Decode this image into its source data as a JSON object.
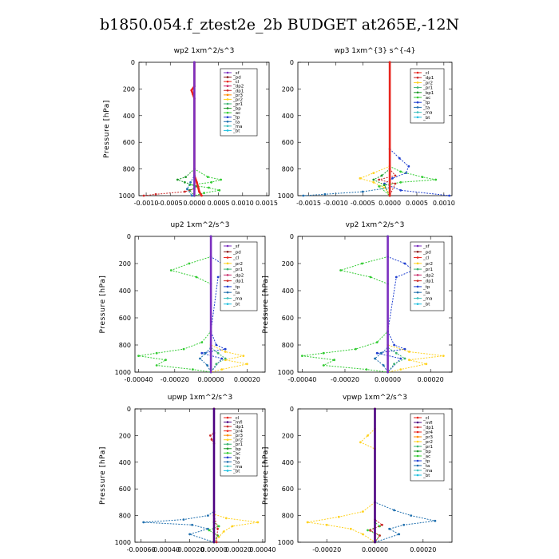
{
  "page": {
    "title": "b1850.054.f_ztest2e_2b  BUDGET at265E,-12N"
  },
  "colors": {
    "sf": "#7b2fbf",
    "pd": "#8b1a1a",
    "cl": "#e8251e",
    "dp2": "#c92a6a",
    "dp1": "#cc2a2a",
    "pr3": "#ff8c00",
    "pr2": "#ffd21f",
    "pr1": "#3cb371",
    "bp": "#1e9a2a",
    "ac": "#33cc33",
    "tp": "#2040d0",
    "ta": "#1f6fae",
    "ma": "#40c0c0",
    "bt": "#20c0e0",
    "mfl": "#4b0080",
    "pr4": "#e8251e"
  },
  "chart_data": [
    {
      "type": "line",
      "title": "wp2   1xm^2/s^3",
      "ylabel": "Pressure  [hPa]",
      "ylim": [
        1000,
        0
      ],
      "yticks": [
        "0",
        "200",
        "400",
        "600",
        "800",
        "1000"
      ],
      "xlim": [
        -0.00115,
        0.00155
      ],
      "xticks": [
        {
          "v": -0.001,
          "label": "-0.0010"
        },
        {
          "v": -0.0005,
          "label": "-0.0005"
        },
        {
          "v": 0.0,
          "label": "0.0000"
        },
        {
          "v": 0.0005,
          "label": "0.0005"
        },
        {
          "v": 0.001,
          "label": "0.0010"
        },
        {
          "v": 0.0015,
          "label": "0.0015"
        }
      ],
      "legend": [
        "_sf",
        "_pd",
        "_cl",
        "_dp2",
        "_dp1",
        "_pr3",
        "_pr2",
        "_pr1",
        "_bp",
        "_ac",
        "_tp",
        "_ta",
        "_ma",
        "_bt"
      ],
      "series": [
        {
          "name": "_ac",
          "color_key": "ac",
          "y": [
            0,
            800,
            860,
            880,
            900,
            920,
            940,
            960,
            980,
            1000
          ],
          "x": [
            0,
            0,
            0.00028,
            0.00055,
            0.00035,
            -0.0001,
            0.0003,
            0.00052,
            0.0002,
            0
          ]
        },
        {
          "name": "_bp",
          "color_key": "bp",
          "y": [
            0,
            800,
            860,
            880,
            900,
            930,
            960,
            1000
          ],
          "x": [
            0,
            0,
            -0.00018,
            -0.00035,
            -0.0002,
            5e-05,
            -0.0001,
            0
          ]
        },
        {
          "name": "_dp1",
          "color_key": "dp1",
          "y": [
            0,
            950,
            970,
            990,
            1000
          ],
          "x": [
            0,
            0,
            -0.0002,
            -0.0008,
            -0.00105
          ]
        },
        {
          "name": "_cl",
          "color_key": "cl",
          "y": [
            0,
            180,
            210,
            240,
            270,
            850,
            900,
            940,
            970,
            1000
          ],
          "x": [
            0,
            0,
            -6e-05,
            -3e-05,
            0,
            0,
            5e-05,
            8e-05,
            0.0001,
            0.00015
          ]
        },
        {
          "name": "_ta",
          "color_key": "ta",
          "y": [
            0,
            850,
            900,
            950,
            1000
          ],
          "x": [
            0,
            0,
            -8e-05,
            -0.00015,
            -5e-05
          ]
        },
        {
          "name": "_sf",
          "color_key": "sf",
          "y": [
            0,
            1000
          ],
          "x": [
            0,
            0
          ]
        }
      ]
    },
    {
      "type": "line",
      "title": "wp3   1xm^{3} s^{-4}",
      "ylabel": "",
      "ylim": [
        1000,
        0
      ],
      "yticks": [
        "0",
        "200",
        "400",
        "600",
        "800",
        "1000"
      ],
      "xlim": [
        -0.0017,
        0.00115
      ],
      "xticks": [
        {
          "v": -0.0015,
          "label": "-0.0015"
        },
        {
          "v": -0.001,
          "label": "-0.0010"
        },
        {
          "v": -0.0005,
          "label": "-0.0005"
        },
        {
          "v": 0.0,
          "label": "0.0000"
        },
        {
          "v": 0.0005,
          "label": "0.0005"
        },
        {
          "v": 0.001,
          "label": "0.0010"
        }
      ],
      "legend": [
        "_cl",
        "_dp1",
        "_pr2",
        "_pr1",
        "_bp1",
        "_ac",
        "_tp",
        "_ta",
        "_ma",
        "_bt"
      ],
      "series": [
        {
          "name": "_tp",
          "color_key": "tp",
          "y": [
            0,
            650,
            720,
            780,
            830,
            870,
            910,
            960,
            1000
          ],
          "x": [
            0,
            0,
            0.00018,
            0.00035,
            0.0003,
            5e-05,
            -0.0001,
            0.0002,
            0.0011
          ]
        },
        {
          "name": "_ac",
          "color_key": "ac",
          "y": [
            0,
            780,
            820,
            860,
            880,
            900,
            930,
            1000
          ],
          "x": [
            0,
            0,
            0.0002,
            0.0006,
            0.00085,
            0.0002,
            -0.0002,
            0
          ]
        },
        {
          "name": "_pr2",
          "color_key": "pr2",
          "y": [
            0,
            780,
            830,
            870,
            900,
            940,
            1000
          ],
          "x": [
            0,
            0,
            -0.0003,
            -0.00055,
            -0.0003,
            -0.0001,
            0
          ]
        },
        {
          "name": "_bp1",
          "color_key": "bp",
          "y": [
            0,
            800,
            850,
            880,
            920,
            1000
          ],
          "x": [
            0,
            0,
            -0.00015,
            -0.0003,
            -0.0001,
            0
          ]
        },
        {
          "name": "_dp1",
          "color_key": "dp1",
          "y": [
            0,
            800,
            850,
            880,
            910,
            1000
          ],
          "x": [
            0,
            0,
            0.0001,
            -0.0002,
            0.0001,
            0
          ]
        },
        {
          "name": "_ta",
          "color_key": "ta",
          "y": [
            0,
            940,
            970,
            990,
            1000
          ],
          "x": [
            0,
            0,
            -0.0005,
            -0.0012,
            -0.0016
          ]
        },
        {
          "name": "_cl",
          "color_key": "cl",
          "y": [
            0,
            1000
          ],
          "x": [
            0,
            0
          ]
        }
      ]
    },
    {
      "type": "line",
      "title": "up2   1xm^2/s^3",
      "ylabel": "Pressure  [hPa]",
      "ylim": [
        1000,
        0
      ],
      "yticks": [
        "0",
        "200",
        "400",
        "600",
        "800",
        "1000"
      ],
      "xlim": [
        -0.00042,
        0.0003
      ],
      "xticks": [
        {
          "v": -0.0004,
          "label": "-0.00040"
        },
        {
          "v": -0.0002,
          "label": "-0.00020"
        },
        {
          "v": 0.0,
          "label": "0.00000"
        },
        {
          "v": 0.0002,
          "label": "0.00020"
        }
      ],
      "legend": [
        "_sf",
        "_pd",
        "_cl",
        "_pr2",
        "_pr1",
        "_dp2",
        "_dp1",
        "_tp",
        "_ta",
        "_ma",
        "_bt"
      ],
      "series": [
        {
          "name": "_ac",
          "color_key": "ac",
          "y": [
            0,
            150,
            200,
            250,
            300,
            350,
            700,
            780,
            830,
            860,
            880,
            910,
            950,
            980,
            1000
          ],
          "x": [
            0,
            0,
            -0.00012,
            -0.00022,
            -8e-05,
            0,
            0,
            -5e-05,
            -0.00015,
            -0.0003,
            -0.0004,
            -0.00025,
            -0.0003,
            -0.0001,
            0
          ]
        },
        {
          "name": "_tp",
          "color_key": "tp",
          "y": [
            0,
            150,
            200,
            250,
            300,
            700,
            800,
            830,
            860,
            900,
            1000
          ],
          "x": [
            0,
            0,
            6e-05,
            0.00012,
            4e-05,
            0,
            3e-05,
            8e-05,
            -5e-05,
            6e-05,
            0
          ]
        },
        {
          "name": "_pr2",
          "color_key": "pr2",
          "y": [
            0,
            800,
            850,
            880,
            910,
            940,
            980,
            1000
          ],
          "x": [
            0,
            0,
            8e-05,
            0.00018,
            8e-05,
            0.0002,
            6e-05,
            0
          ]
        },
        {
          "name": "_pr1",
          "color_key": "pr1",
          "y": [
            0,
            820,
            860,
            900,
            940,
            1000
          ],
          "x": [
            0,
            0,
            4e-05,
            8e-05,
            3e-05,
            0
          ]
        },
        {
          "name": "_ta",
          "color_key": "ta",
          "y": [
            0,
            820,
            860,
            900,
            950,
            1000
          ],
          "x": [
            0,
            0,
            -3e-05,
            -6e-05,
            -2e-05,
            0
          ]
        },
        {
          "name": "_sf",
          "color_key": "sf",
          "y": [
            0,
            1000
          ],
          "x": [
            0,
            0
          ]
        }
      ]
    },
    {
      "type": "line",
      "title": "vp2   1xm^2/s^3",
      "ylabel": "Pressure  [hPa]",
      "ylim": [
        1000,
        0
      ],
      "yticks": [
        "0",
        "200",
        "400",
        "600",
        "800",
        "1000"
      ],
      "xlim": [
        -0.00042,
        0.0003
      ],
      "xticks": [
        {
          "v": -0.0004,
          "label": "-0.00040"
        },
        {
          "v": -0.0002,
          "label": "-0.00020"
        },
        {
          "v": 0.0,
          "label": "0.00000"
        },
        {
          "v": 0.0002,
          "label": "0.00020"
        }
      ],
      "legend": [
        "_sf",
        "_pd",
        "_cl",
        "_pr2",
        "_pr1",
        "_dp2",
        "_dp1",
        "_tp",
        "_ta",
        "_ma",
        "_bt"
      ],
      "series": [
        {
          "name": "_ac",
          "color_key": "ac",
          "y": [
            0,
            150,
            200,
            250,
            300,
            350,
            700,
            780,
            830,
            860,
            880,
            910,
            950,
            980,
            1000
          ],
          "x": [
            0,
            0,
            -0.00012,
            -0.00022,
            -8e-05,
            0,
            0,
            -5e-05,
            -0.00015,
            -0.0003,
            -0.0004,
            -0.00025,
            -0.0003,
            -0.0001,
            0
          ]
        },
        {
          "name": "_tp",
          "color_key": "tp",
          "y": [
            0,
            150,
            200,
            250,
            300,
            700,
            800,
            830,
            860,
            900,
            1000
          ],
          "x": [
            0,
            0,
            8e-05,
            0.00012,
            4e-05,
            0,
            3e-05,
            8e-05,
            -5e-05,
            6e-05,
            0
          ]
        },
        {
          "name": "_pr2",
          "color_key": "pr2",
          "y": [
            0,
            800,
            850,
            880,
            910,
            940,
            980,
            1000
          ],
          "x": [
            0,
            0,
            0.0001,
            0.00026,
            0.0001,
            0.00018,
            6e-05,
            0
          ]
        },
        {
          "name": "_pr1",
          "color_key": "pr1",
          "y": [
            0,
            820,
            860,
            900,
            940,
            1000
          ],
          "x": [
            0,
            0,
            4e-05,
            8e-05,
            3e-05,
            0
          ]
        },
        {
          "name": "_ta",
          "color_key": "ta",
          "y": [
            0,
            820,
            860,
            900,
            950,
            1000
          ],
          "x": [
            0,
            0,
            -3e-05,
            -6e-05,
            -2e-05,
            0
          ]
        },
        {
          "name": "_sf",
          "color_key": "sf",
          "y": [
            0,
            1000
          ],
          "x": [
            0,
            0
          ]
        }
      ]
    },
    {
      "type": "line",
      "title": "upwp   1xm^2/s^3",
      "ylabel": "Pressure  [hPa]",
      "ylim": [
        1000,
        0
      ],
      "yticks": [
        "0",
        "200",
        "400",
        "600",
        "800",
        "1000"
      ],
      "xlim": [
        -0.00065,
        0.00042
      ],
      "xticks": [
        {
          "v": -0.0006,
          "label": "-0.00060"
        },
        {
          "v": -0.0004,
          "label": "-0.00040"
        },
        {
          "v": -0.0002,
          "label": "-0.00020"
        },
        {
          "v": 0.0,
          "label": "0.00000"
        },
        {
          "v": 0.0002,
          "label": "0.00020"
        },
        {
          "v": 0.0004,
          "label": "0.00040"
        }
      ],
      "legend": [
        "_cl",
        "_mfl",
        "_dp1",
        "_pr4",
        "_pr3",
        "_pr2",
        "_pr1",
        "_bp",
        "_ac",
        "_tp",
        "_ta",
        "_ma",
        "_bt"
      ],
      "series": [
        {
          "name": "_ta",
          "color_key": "ta",
          "y": [
            0,
            770,
            800,
            830,
            850,
            870,
            900,
            940,
            1000
          ],
          "x": [
            0,
            0,
            -5e-05,
            -0.00025,
            -0.00058,
            -0.00018,
            -5e-05,
            -0.0002,
            0
          ]
        },
        {
          "name": "_pr2",
          "color_key": "pr2",
          "y": [
            0,
            790,
            820,
            850,
            880,
            920,
            960,
            1000
          ],
          "x": [
            0,
            0,
            0.0001,
            0.00036,
            0.00015,
            8e-05,
            4e-05,
            0
          ]
        },
        {
          "name": "_ac",
          "color_key": "ac",
          "y": [
            0,
            850,
            880,
            910,
            950,
            1000
          ],
          "x": [
            0,
            0,
            4e-05,
            -4e-05,
            3e-05,
            0
          ]
        },
        {
          "name": "_dp1",
          "color_key": "dp1",
          "y": [
            0,
            180,
            200,
            230,
            260,
            800,
            900,
            1000
          ],
          "x": [
            0,
            0,
            -3e-05,
            -2e-05,
            0,
            0,
            3e-05,
            2e-05
          ]
        },
        {
          "name": "_mfl",
          "color_key": "mfl",
          "y": [
            0,
            1000
          ],
          "x": [
            0,
            0
          ]
        }
      ]
    },
    {
      "type": "line",
      "title": "vpwp   1xm^2/s^3",
      "ylabel": "Pressure  [hPa]",
      "ylim": [
        1000,
        0
      ],
      "yticks": [
        "0",
        "200",
        "400",
        "600",
        "800",
        "1000"
      ],
      "xlim": [
        -0.00032,
        0.00032
      ],
      "xticks": [
        {
          "v": -0.0002,
          "label": "-0.00020"
        },
        {
          "v": 0.0,
          "label": "0.00000"
        },
        {
          "v": 0.0002,
          "label": "0.00020"
        }
      ],
      "legend": [
        "_cl",
        "_mfl",
        "_dp1",
        "_pr4",
        "_pr3",
        "_pr2",
        "_pr1",
        "_bp",
        "_ac",
        "_tp",
        "_ta",
        "_ma",
        "_bt"
      ],
      "series": [
        {
          "name": "_pr2",
          "color_key": "pr2",
          "y": [
            0,
            150,
            200,
            250,
            300,
            700,
            770,
            810,
            850,
            870,
            900,
            940,
            1000
          ],
          "x": [
            0,
            0,
            -3e-05,
            -6e-05,
            0,
            0,
            -5e-05,
            -0.00015,
            -0.00028,
            -0.0002,
            -0.0001,
            -5e-05,
            0
          ]
        },
        {
          "name": "_ta",
          "color_key": "ta",
          "y": [
            0,
            700,
            760,
            800,
            840,
            870,
            900,
            940,
            1000
          ],
          "x": [
            0,
            0,
            8e-05,
            0.00015,
            0.00025,
            0.00012,
            6e-05,
            0.0001,
            0
          ]
        },
        {
          "name": "_ac",
          "color_key": "ac",
          "y": [
            0,
            850,
            880,
            910,
            950,
            1000
          ],
          "x": [
            0,
            0,
            2e-05,
            -3e-05,
            2e-05,
            0
          ]
        },
        {
          "name": "_dp1",
          "color_key": "dp1",
          "y": [
            0,
            830,
            870,
            910,
            950,
            1000
          ],
          "x": [
            0,
            0,
            3e-05,
            -2e-05,
            2e-05,
            0
          ]
        },
        {
          "name": "_mfl",
          "color_key": "mfl",
          "y": [
            0,
            1000
          ],
          "x": [
            0,
            0
          ]
        }
      ]
    }
  ]
}
